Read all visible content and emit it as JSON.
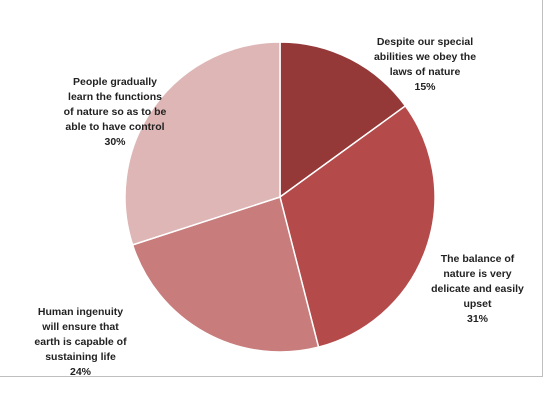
{
  "chart_data": {
    "type": "pie",
    "start_angle_deg": 0,
    "direction": "clockwise",
    "slices": [
      {
        "label": "Despite our special\nabilities we obey the\nlaws of nature",
        "percent_label": "15%",
        "value": 15,
        "color": "#943838"
      },
      {
        "label": "The balance of\nnature is very\ndelicate and easily\nupset",
        "percent_label": "31%",
        "value": 31,
        "color": "#b44a4a"
      },
      {
        "label": "Human ingenuity\nwill ensure that\nearth is capable of\nsustaining life",
        "percent_label": "24%",
        "value": 24,
        "color": "#c87c7c"
      },
      {
        "label": "People gradually\nlearn the functions\nof nature so as to be\nable to have control",
        "percent_label": "30%",
        "value": 30,
        "color": "#deb6b6"
      }
    ]
  }
}
